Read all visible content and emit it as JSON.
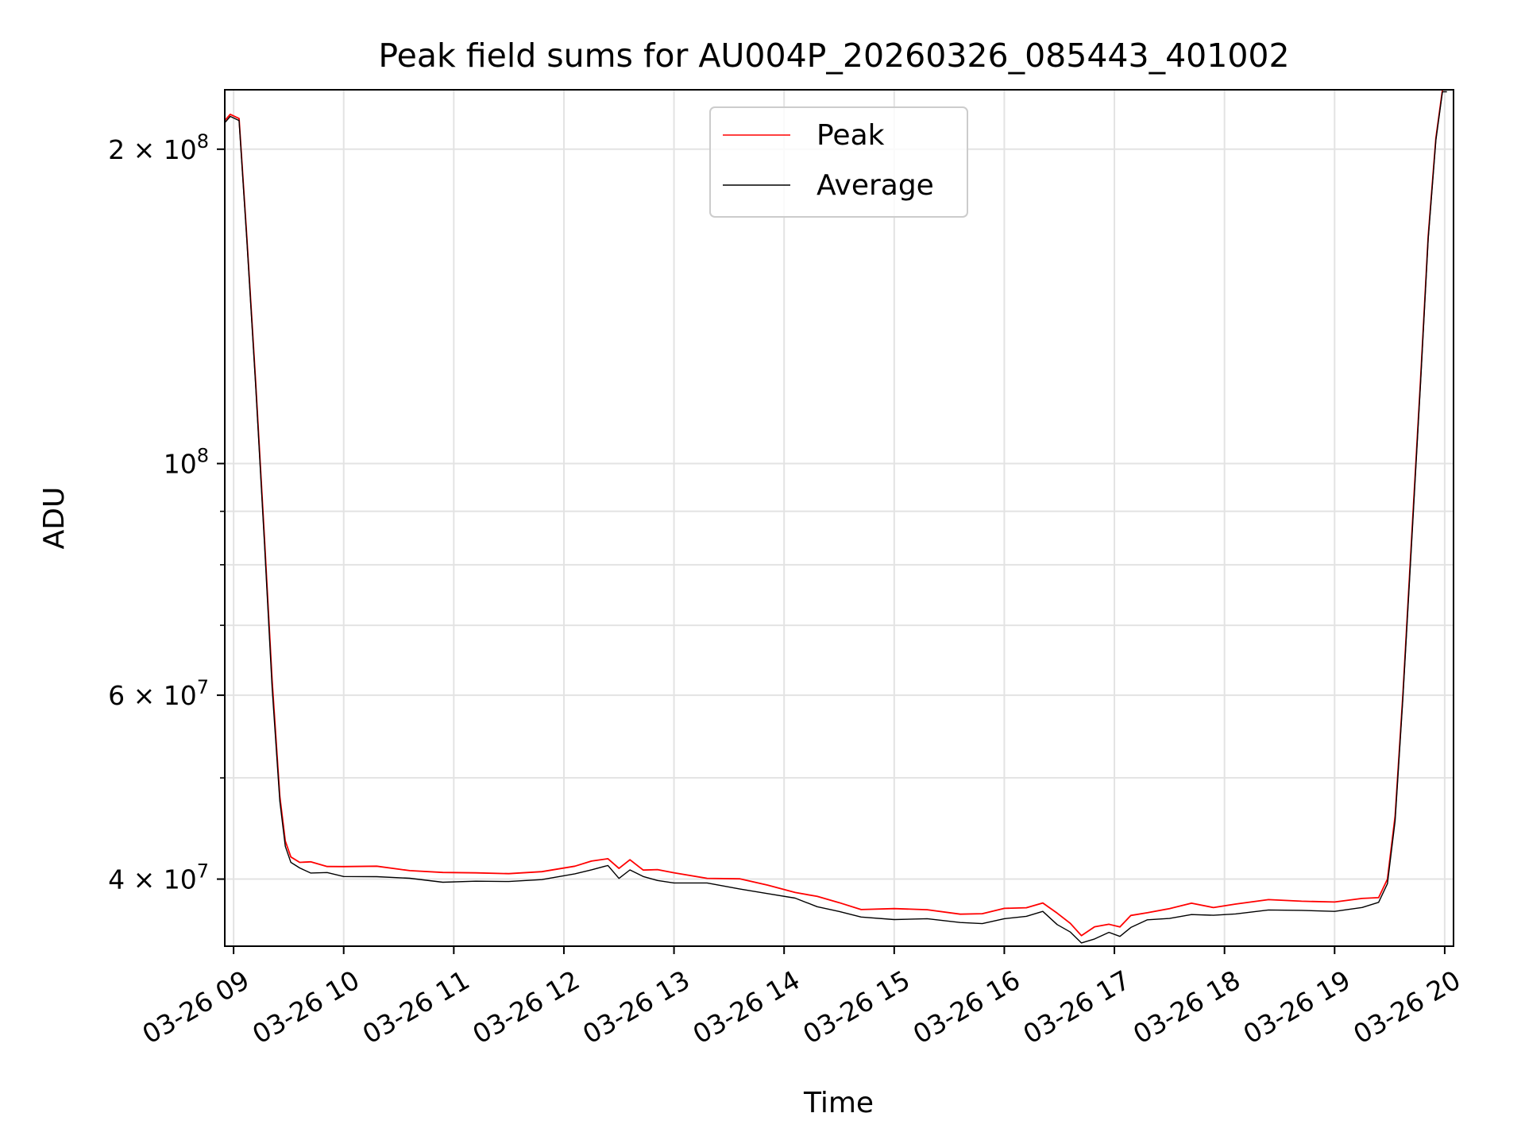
{
  "chart_data": {
    "type": "line",
    "title": "Peak field sums for AU004P_20260326_085443_401002",
    "xlabel": "Time",
    "ylabel": "ADU",
    "yscale": "log",
    "xlim": [
      8.92,
      20.08
    ],
    "ylim": [
      34500000,
      228000000
    ],
    "grid": true,
    "legend_position": "upper-center",
    "x_ticks": [
      9,
      10,
      11,
      12,
      13,
      14,
      15,
      16,
      17,
      18,
      19,
      20
    ],
    "x_tick_labels": [
      "03-26 09",
      "03-26 10",
      "03-26 11",
      "03-26 12",
      "03-26 13",
      "03-26 14",
      "03-26 15",
      "03-26 16",
      "03-26 17",
      "03-26 18",
      "03-26 19",
      "03-26 20"
    ],
    "y_major_ticks": [
      40000000,
      60000000,
      100000000,
      200000000
    ],
    "y_major_tick_labels": [
      {
        "mantissa": "4",
        "base": "10",
        "exp": "7"
      },
      {
        "mantissa": "6",
        "base": "10",
        "exp": "7"
      },
      {
        "mantissa": "",
        "base": "10",
        "exp": "8"
      },
      {
        "mantissa": "2",
        "base": "10",
        "exp": "8"
      }
    ],
    "y_minor_ticks": [
      50000000,
      70000000,
      80000000,
      90000000
    ],
    "x_units": "hours (2026-03-26)",
    "series": [
      {
        "name": "Peak",
        "color": "#ff0000",
        "x": [
          8.92,
          8.97,
          9.05,
          9.12,
          9.2,
          9.28,
          9.35,
          9.42,
          9.47,
          9.52,
          9.6,
          9.7,
          9.85,
          10.0,
          10.3,
          10.6,
          10.9,
          11.2,
          11.5,
          11.8,
          12.1,
          12.25,
          12.4,
          12.5,
          12.6,
          12.72,
          12.85,
          13.0,
          13.3,
          13.6,
          13.85,
          14.1,
          14.3,
          14.5,
          14.7,
          15.0,
          15.3,
          15.6,
          15.8,
          16.0,
          16.2,
          16.35,
          16.48,
          16.6,
          16.7,
          16.82,
          16.95,
          17.05,
          17.15,
          17.3,
          17.5,
          17.7,
          17.9,
          18.1,
          18.4,
          18.7,
          19.0,
          19.25,
          19.4,
          19.48,
          19.55,
          19.62,
          19.7,
          19.78,
          19.85,
          19.92,
          19.98,
          20.02
        ],
        "y": [
          213000000,
          216000000,
          214000000,
          165000000,
          120000000,
          85000000,
          62000000,
          48000000,
          43500000,
          42000000,
          41500000,
          41200000,
          41000000,
          40900000,
          40800000,
          40600000,
          40400000,
          40200000,
          40300000,
          40500000,
          40800000,
          41400000,
          41700000,
          40600000,
          41500000,
          40700000,
          40500000,
          40300000,
          40000000,
          39700000,
          39200000,
          38800000,
          38200000,
          37700000,
          37400000,
          37200000,
          37100000,
          37000000,
          36800000,
          37200000,
          37500000,
          37700000,
          36800000,
          36200000,
          35100000,
          35700000,
          36100000,
          35800000,
          36600000,
          37000000,
          37300000,
          37600000,
          37400000,
          37700000,
          37900000,
          37900000,
          37900000,
          38000000,
          38400000,
          40000000,
          46000000,
          60000000,
          85000000,
          120000000,
          165000000,
          205000000,
          228000000,
          228000000
        ]
      },
      {
        "name": "Average",
        "color": "#000000",
        "x": [
          8.92,
          8.97,
          9.05,
          9.12,
          9.2,
          9.28,
          9.35,
          9.42,
          9.47,
          9.52,
          9.6,
          9.7,
          9.85,
          10.0,
          10.3,
          10.6,
          10.9,
          11.2,
          11.5,
          11.8,
          12.1,
          12.25,
          12.4,
          12.5,
          12.6,
          12.72,
          12.85,
          13.0,
          13.3,
          13.6,
          13.85,
          14.1,
          14.3,
          14.5,
          14.7,
          15.0,
          15.3,
          15.6,
          15.8,
          16.0,
          16.2,
          16.35,
          16.48,
          16.6,
          16.7,
          16.82,
          16.95,
          17.05,
          17.15,
          17.3,
          17.5,
          17.7,
          17.9,
          18.1,
          18.4,
          18.7,
          19.0,
          19.25,
          19.4,
          19.48,
          19.55,
          19.62,
          19.7,
          19.78,
          19.85,
          19.92,
          19.98,
          20.02
        ],
        "y": [
          212000000,
          215000000,
          213000000,
          164000000,
          119000000,
          84000000,
          61000000,
          47500000,
          43000000,
          41500000,
          41000000,
          40800000,
          40600000,
          40500000,
          40400000,
          40200000,
          40000000,
          39900000,
          40000000,
          40200000,
          40500000,
          41100000,
          41400000,
          40200000,
          41100000,
          40300000,
          40100000,
          39900000,
          39700000,
          39400000,
          38900000,
          38500000,
          37900000,
          37300000,
          37000000,
          36800000,
          36700000,
          36600000,
          36400000,
          36800000,
          37100000,
          37300000,
          36400000,
          35800000,
          34800000,
          35300000,
          35700000,
          35400000,
          36200000,
          36600000,
          36900000,
          37200000,
          37000000,
          37300000,
          37500000,
          37500000,
          37500000,
          37600000,
          38000000,
          39600000,
          45500000,
          59500000,
          84000000,
          119000000,
          164000000,
          204000000,
          227000000,
          227000000
        ]
      }
    ]
  }
}
